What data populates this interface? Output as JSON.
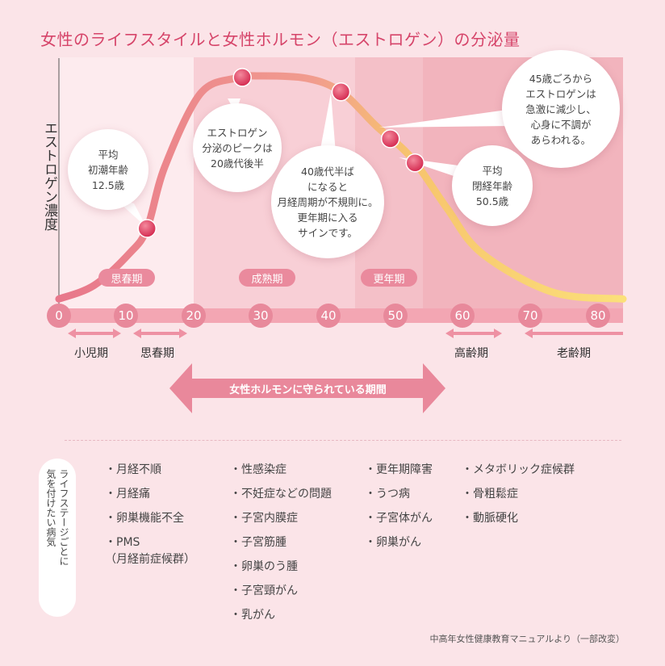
{
  "title": "女性のライフスタイルと女性ホルモン（エストロゲン）の分泌量",
  "ylabel": "エストロゲン濃度",
  "x_ticks": [
    "0",
    "10",
    "20",
    "30",
    "40",
    "50",
    "60",
    "70",
    "80"
  ],
  "phases": {
    "puberty": "思春期",
    "maturity": "成熟期",
    "menopause": "更年期"
  },
  "bubbles": {
    "menarche": "平均\n初潮年齢\n12.5歳",
    "peak": "エストロゲン\n分泌のピークは\n20歳代後半",
    "mid40": "40歳代半ば\nになると\n月経周期が不規則に。\n更年期に入る\nサインです。",
    "age45": "45歳ごろから\nエストロゲンは\n急激に減少し、\n心身に不調が\nあらわれる。",
    "menopause_age": "平均\n閉経年齢\n50.5歳"
  },
  "stages": {
    "child": "小児期",
    "puberty": "思春期",
    "elderly": "高齢期",
    "old": "老齢期"
  },
  "protected_period": "女性ホルモンに守られている期間",
  "side_label": "ライフステージごとに\n気を付けたい病気",
  "risks": {
    "col1": [
      "・月経不順",
      "・月経痛",
      "・卵巣機能不全",
      "・PMS\n（月経前症候群）"
    ],
    "col2": [
      "・性感染症",
      "・不妊症などの問題",
      "・子宮内膜症",
      "・子宮筋腫",
      "・卵巣のう腫",
      "・子宮頸がん",
      "・乳がん"
    ],
    "col3": [
      "・更年期障害",
      "・うつ病",
      "・子宮体がん",
      "・卵巣がん"
    ],
    "col4": [
      "・メタボリック症候群",
      "・骨粗鬆症",
      "・動脈硬化"
    ]
  },
  "source": "中高年女性健康教育マニュアルより（一部改変）",
  "colors": {
    "title": "#d6456a",
    "curve_start": "#e8778b",
    "curve_end": "#f7d86b",
    "dot": "#e03c5e",
    "tick": "#e8899b"
  },
  "chart_data": {
    "type": "line",
    "x_unit": "age",
    "xlim": [
      0,
      80
    ],
    "y_label": "エストロゲン濃度",
    "series": [
      {
        "x": [
          0,
          5,
          10,
          12.5,
          15,
          20,
          25,
          28,
          35,
          40,
          45,
          50,
          55,
          60,
          70,
          80
        ],
        "y": [
          0.02,
          0.08,
          0.22,
          0.33,
          0.6,
          0.92,
          0.99,
          1.0,
          0.99,
          0.93,
          0.78,
          0.64,
          0.42,
          0.22,
          0.05,
          0.02
        ]
      }
    ],
    "markers": [
      12.5,
      26,
      40,
      47,
      50.5
    ],
    "bands": [
      {
        "label": "思春期",
        "from": 0,
        "to": 20
      },
      {
        "label": "成熟期",
        "from": 20,
        "to": 44
      },
      {
        "label": "更年期",
        "from": 44,
        "to": 54
      }
    ]
  }
}
